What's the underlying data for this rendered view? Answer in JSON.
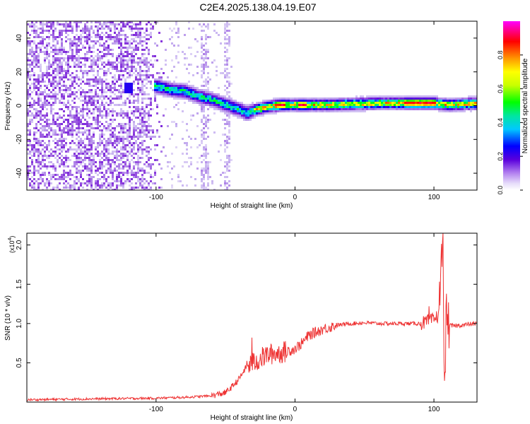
{
  "title": "C2E4.2025.138.04.19.E07",
  "chart_data": [
    {
      "type": "heatmap",
      "xlabel": "Height of straight line (km)",
      "ylabel": "Frequency (Hz)",
      "xlim": [
        -193,
        131
      ],
      "ylim": [
        -50,
        50
      ],
      "xticks": [
        -100,
        0,
        100
      ],
      "yticks": [
        -40,
        -20,
        0,
        20,
        40
      ],
      "colorbar": {
        "label": "Normalized spectral amplitude",
        "range": [
          0,
          1
        ],
        "ticks": [
          "0.0",
          "0.2",
          "0.4",
          "0.6",
          "0.8"
        ],
        "colormap": [
          "#ffffff",
          "#c8b4f0",
          "#8c3cdc",
          "#5a00dc",
          "#0000ff",
          "#00c8ff",
          "#00e6a0",
          "#00ff00",
          "#c8ff00",
          "#ffff00",
          "#ff9600",
          "#ff0000",
          "#ff00ff"
        ]
      },
      "ridge_frequency_hz": {
        "x": [
          -100,
          -90,
          -80,
          -70,
          -60,
          -50,
          -40,
          -35,
          -30,
          -20,
          -10,
          0,
          10,
          20,
          40,
          60,
          80,
          100,
          110,
          120,
          131
        ],
        "y": [
          12,
          10,
          9,
          6,
          4,
          1,
          -2,
          -4,
          -2,
          0,
          1,
          1,
          1,
          1,
          1.5,
          2,
          2,
          2,
          1,
          1.5,
          2
        ]
      }
    },
    {
      "type": "line",
      "xlabel": "Height of straight line (km)",
      "ylabel": "SNR (10 * v/v)",
      "y_multiplier_label": "(x10",
      "y_multiplier_exp": "4",
      "xlim": [
        -193,
        131
      ],
      "ylim": [
        0.0,
        2.15
      ],
      "xticks": [
        -100,
        0,
        100
      ],
      "yticks": [
        0.5,
        1.0,
        1.5,
        2.0
      ],
      "ytick_labels": [
        "0.5",
        "1.0",
        "1.5",
        "2.0"
      ],
      "series": [
        {
          "color": "#ee3333",
          "x": [
            -193,
            -150,
            -100,
            -80,
            -60,
            -50,
            -45,
            -40,
            -35,
            -30,
            -25,
            -20,
            -15,
            -10,
            -5,
            0,
            5,
            10,
            20,
            30,
            40,
            50,
            60,
            70,
            80,
            90,
            95,
            100,
            103,
            105,
            106,
            107,
            108,
            109,
            110,
            115,
            120,
            131
          ],
          "y": [
            0.03,
            0.04,
            0.05,
            0.06,
            0.08,
            0.12,
            0.2,
            0.3,
            0.45,
            0.5,
            0.55,
            0.6,
            0.62,
            0.63,
            0.65,
            0.68,
            0.75,
            0.85,
            0.93,
            0.98,
            1.0,
            1.01,
            1.0,
            1.0,
            1.0,
            1.0,
            1.02,
            1.05,
            1.1,
            1.5,
            2.15,
            0.8,
            0.4,
            1.2,
            0.97,
            0.97,
            0.98,
            1.0
          ]
        }
      ]
    }
  ]
}
